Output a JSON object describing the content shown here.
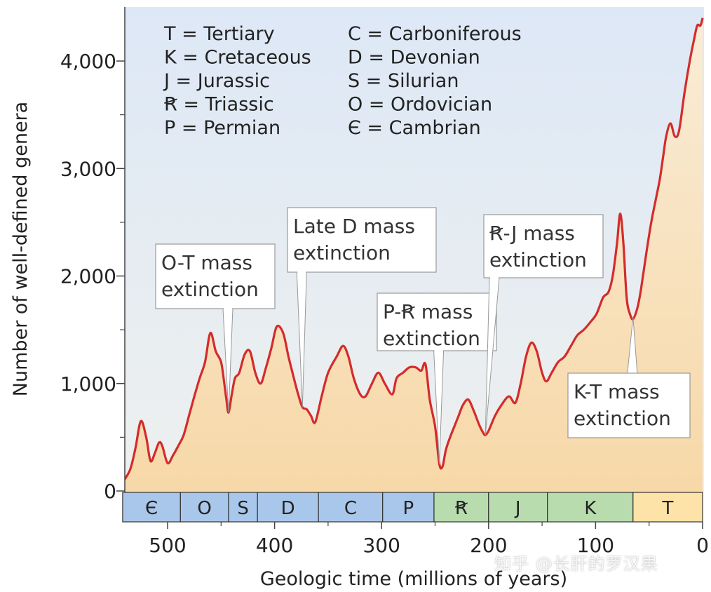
{
  "chart_data": {
    "type": "area",
    "xlabel": "Geologic time (millions of years)",
    "ylabel": "Number of well-defined genera",
    "xlim": [
      542,
      0
    ],
    "ylim": [
      0,
      4400
    ],
    "x_ticks": [
      500,
      400,
      300,
      200,
      100,
      0
    ],
    "x_tick_labels": [
      "500",
      "400",
      "300",
      "200",
      "100",
      "0"
    ],
    "y_ticks": [
      0,
      1000,
      2000,
      3000,
      4000
    ],
    "y_tick_labels": [
      "0",
      "1,000",
      "2,000",
      "3,000",
      "4,000"
    ],
    "y_minor_ticks": [
      500,
      1500,
      2500,
      3500
    ],
    "series": [
      {
        "x": [
          542,
          535,
          530,
          525,
          520,
          516,
          512,
          508,
          505,
          500,
          495,
          490,
          485,
          480,
          475,
          470,
          465,
          460,
          455,
          450,
          447,
          445,
          443,
          440,
          437,
          433,
          428,
          423,
          418,
          413,
          408,
          403,
          398,
          392,
          387,
          382,
          378,
          374,
          370,
          366,
          362,
          356,
          350,
          342,
          336,
          331,
          326,
          320,
          315,
          309,
          303,
          297,
          290,
          286,
          280,
          274,
          268,
          263,
          259,
          255,
          250,
          246,
          243,
          240,
          236,
          232,
          228,
          224,
          219,
          214,
          209,
          205,
          203,
          200,
          194,
          188,
          181,
          175,
          170,
          165,
          160,
          155,
          150,
          146,
          141,
          135,
          129,
          123,
          117,
          111,
          105,
          99,
          93,
          88,
          84,
          80,
          77,
          74,
          71,
          68,
          65,
          61,
          58,
          55,
          52,
          48,
          44,
          40,
          37,
          34,
          30,
          26,
          22,
          17,
          12,
          8,
          5,
          2,
          0
        ],
        "y": [
          80,
          200,
          400,
          650,
          500,
          280,
          350,
          450,
          420,
          260,
          330,
          420,
          520,
          700,
          880,
          1050,
          1200,
          1470,
          1300,
          1200,
          1000,
          850,
          730,
          900,
          1050,
          1100,
          1270,
          1300,
          1100,
          1000,
          1150,
          1330,
          1530,
          1470,
          1250,
          1050,
          900,
          780,
          760,
          700,
          640,
          880,
          1100,
          1250,
          1350,
          1250,
          1050,
          900,
          880,
          1000,
          1100,
          1000,
          900,
          1050,
          1100,
          1150,
          1150,
          1120,
          1180,
          850,
          600,
          250,
          230,
          380,
          500,
          600,
          700,
          800,
          850,
          750,
          620,
          540,
          520,
          560,
          700,
          800,
          880,
          820,
          1000,
          1250,
          1380,
          1300,
          1100,
          1020,
          1100,
          1200,
          1250,
          1350,
          1450,
          1500,
          1570,
          1650,
          1800,
          1850,
          2000,
          2300,
          2580,
          2300,
          1800,
          1650,
          1600,
          1700,
          1850,
          2050,
          2250,
          2500,
          2700,
          2900,
          3100,
          3300,
          3420,
          3300,
          3350,
          3700,
          4000,
          4200,
          4330,
          4330,
          4400
        ]
      }
    ],
    "periods": [
      {
        "label": "Є",
        "start": 542,
        "end": 488,
        "color": "#a9c7ea"
      },
      {
        "label": "O",
        "start": 488,
        "end": 443,
        "color": "#a9c7ea"
      },
      {
        "label": "S",
        "start": 443,
        "end": 416,
        "color": "#a9c7ea"
      },
      {
        "label": "D",
        "start": 416,
        "end": 359,
        "color": "#a9c7ea"
      },
      {
        "label": "C",
        "start": 359,
        "end": 299,
        "color": "#a9c7ea"
      },
      {
        "label": "P",
        "start": 299,
        "end": 251,
        "color": "#a9c7ea"
      },
      {
        "label": "Ꞧ",
        "start": 251,
        "end": 200,
        "color": "#b8dcae"
      },
      {
        "label": "J",
        "start": 200,
        "end": 145,
        "color": "#b8dcae"
      },
      {
        "label": "K",
        "start": 145,
        "end": 65,
        "color": "#b8dcae"
      },
      {
        "label": "T",
        "start": 65,
        "end": 0,
        "color": "#fde3a7"
      }
    ],
    "legend": [
      [
        "T = Tertiary",
        "C = Carboniferous"
      ],
      [
        "K = Cretaceous",
        "D = Devonian"
      ],
      [
        "J = Jurassic",
        "S = Silurian"
      ],
      [
        "Ꞧ = Triassic",
        "O = Ordovician"
      ],
      [
        "P = Permian",
        "Є = Cambrian"
      ]
    ],
    "annotations": [
      {
        "lines": [
          "O-T mass",
          "extinction"
        ],
        "x": 443,
        "y": 730
      },
      {
        "lines": [
          "Late D mass",
          "extinction"
        ],
        "x": 374,
        "y": 780
      },
      {
        "lines": [
          "P-Ꞧ mass",
          "extinction"
        ],
        "x": 246,
        "y": 250
      },
      {
        "lines": [
          "Ꞧ-J mass",
          "extinction"
        ],
        "x": 203,
        "y": 520
      },
      {
        "lines": [
          "K-T mass",
          "extinction"
        ],
        "x": 65,
        "y": 1620
      }
    ],
    "colors": {
      "line": "#d42b2b",
      "fill_top": "#f9ecd6",
      "fill_bottom": "#f7d8a8",
      "background_top": "#dde8f6",
      "background_bottom": "#eef0ee"
    }
  },
  "watermark": "知乎 @长肝的罗汉果"
}
